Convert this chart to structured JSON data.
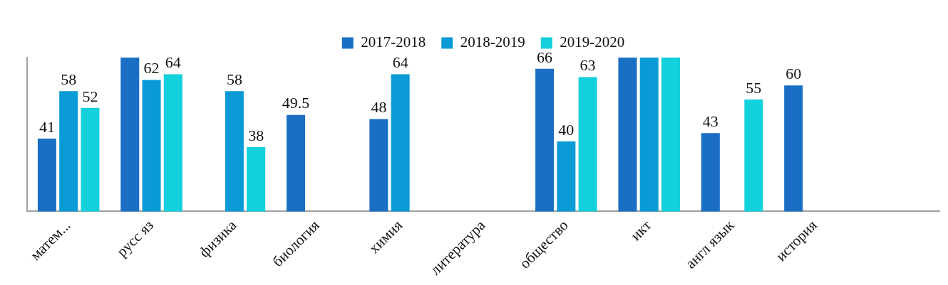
{
  "chart_data": {
    "type": "bar",
    "categories": [
      "матем...",
      "русс яз",
      "физика",
      "биология",
      "химия",
      "литература",
      "общество",
      "икт",
      "англ язык",
      "история",
      null
    ],
    "ylim": [
      15,
      70
    ],
    "legend": "top",
    "tick_labels": "x",
    "grid": false,
    "series": [
      {
        "name": "2017-2018",
        "color": "#1a6fc4",
        "values": [
          41,
          70,
          null,
          49.5,
          48,
          null,
          66,
          70,
          43,
          60,
          null
        ],
        "value_labels": [
          "41",
          null,
          null,
          "49.5",
          "48",
          null,
          "66",
          null,
          "43",
          "60",
          null
        ]
      },
      {
        "name": "2018-2019",
        "color": "#0a9ad6",
        "values": [
          58,
          62,
          58,
          null,
          64,
          null,
          40,
          70,
          null,
          null,
          null
        ],
        "value_labels": [
          "58",
          "62",
          "58",
          null,
          "64",
          null,
          "40",
          null,
          null,
          null,
          null
        ]
      },
      {
        "name": "2019-2020",
        "color": "#12d0dc",
        "values": [
          52,
          64,
          38,
          null,
          null,
          null,
          63,
          70,
          55,
          null,
          null
        ],
        "value_labels": [
          "52",
          "64",
          "38",
          null,
          null,
          null,
          "63",
          null,
          "55",
          null,
          null
        ]
      }
    ]
  }
}
